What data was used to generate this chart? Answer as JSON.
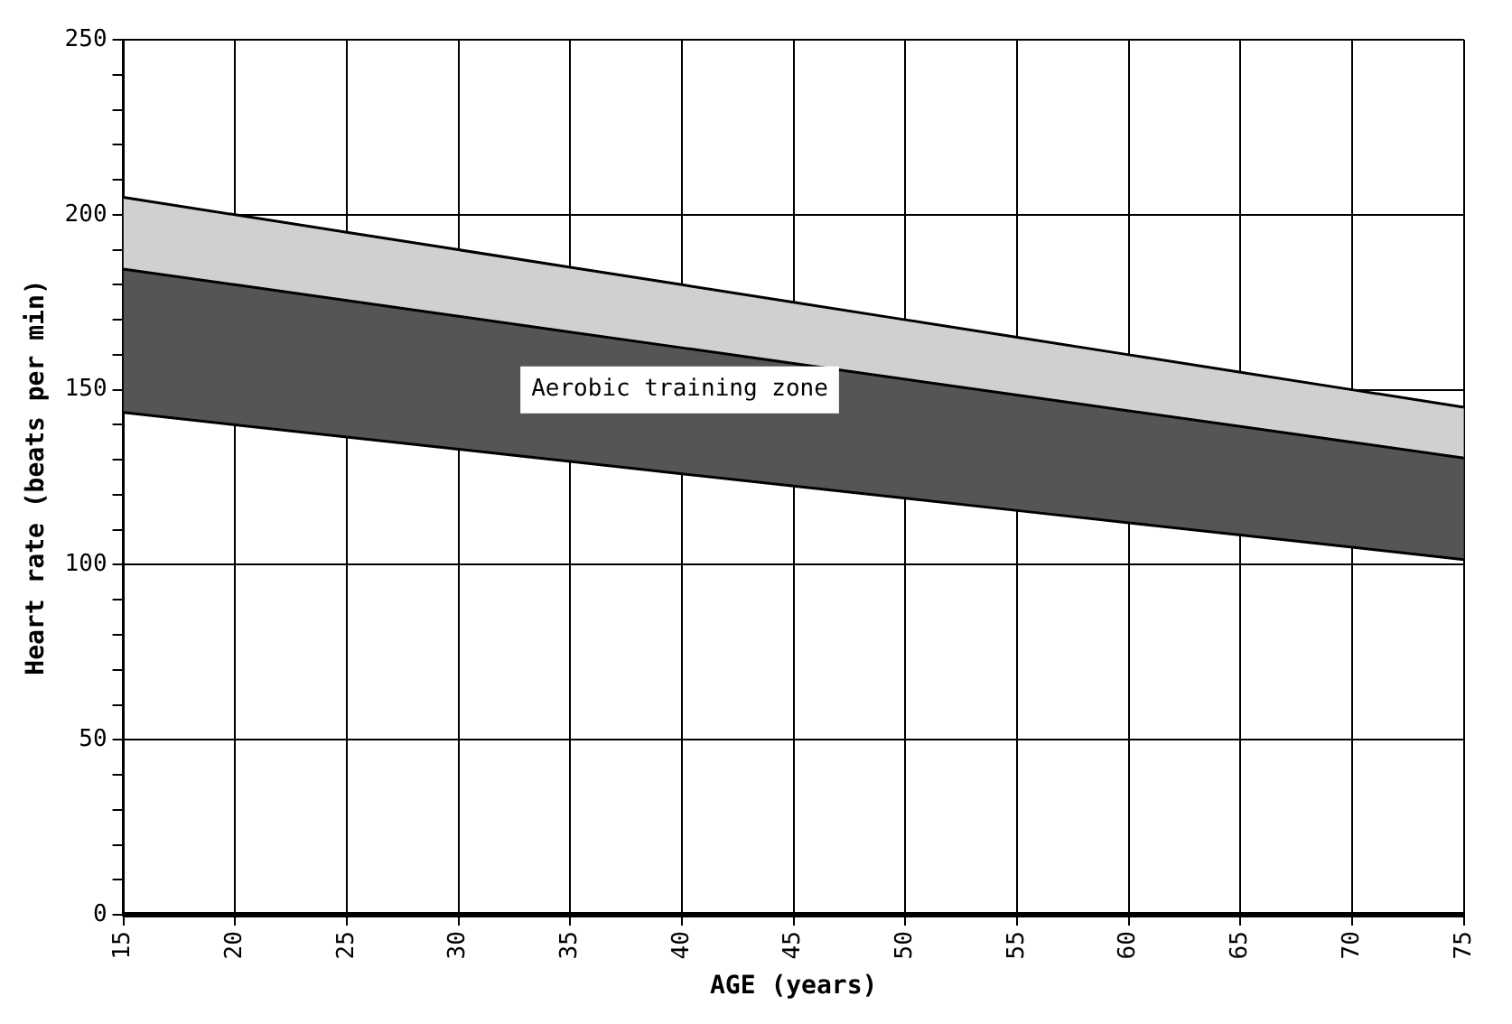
{
  "chart_data": {
    "type": "line",
    "xlabel": "AGE (years)",
    "ylabel": "Heart rate (beats per min)",
    "x": [
      15,
      20,
      25,
      30,
      35,
      40,
      45,
      50,
      55,
      60,
      65,
      70,
      75
    ],
    "series": [
      {
        "color": "#000000",
        "values": [
          143.5,
          140,
          136.5,
          133,
          129.5,
          126,
          122.5,
          119,
          115.5,
          112,
          108.5,
          105,
          101.5
        ]
      },
      {
        "type": "area",
        "color": "#555555",
        "values": [
          184.5,
          180,
          175.5,
          171,
          166.5,
          162,
          157.5,
          153,
          148.5,
          144,
          139.5,
          135,
          130.5
        ]
      },
      {
        "type": "area",
        "color": "#d0d0d0",
        "values": [
          205,
          200,
          195,
          190,
          185,
          180,
          175,
          170,
          165,
          160,
          155,
          150,
          145
        ]
      }
    ],
    "xlim": [
      15,
      75
    ],
    "xticks": [
      15,
      20,
      25,
      30,
      35,
      40,
      45,
      50,
      55,
      60,
      65,
      70,
      75
    ],
    "ylim": [
      0,
      250
    ],
    "yticks": [
      0,
      {
        "value": 10,
        "label": null
      },
      {
        "value": 20,
        "label": null
      },
      {
        "value": 30,
        "label": null
      },
      {
        "value": 40,
        "label": null
      },
      50,
      {
        "value": 60,
        "label": null
      },
      {
        "value": 70,
        "label": null
      },
      {
        "value": 80,
        "label": null
      },
      {
        "value": 90,
        "label": null
      },
      100,
      {
        "value": 110,
        "label": null
      },
      {
        "value": 120,
        "label": null
      },
      {
        "value": 130,
        "label": null
      },
      {
        "value": 140,
        "label": null
      },
      150,
      {
        "value": 160,
        "label": null
      },
      {
        "value": 170,
        "label": null
      },
      {
        "value": 180,
        "label": null
      },
      {
        "value": 190,
        "label": null
      },
      200,
      {
        "value": 210,
        "label": null
      },
      {
        "value": 220,
        "label": null
      },
      {
        "value": 230,
        "label": null
      },
      {
        "value": 240,
        "label": null
      },
      250
    ],
    "grid": true,
    "legend": false,
    "marker": "none",
    "line_style": "solid",
    "annotations": [
      "Aerobic training zone"
    ]
  }
}
